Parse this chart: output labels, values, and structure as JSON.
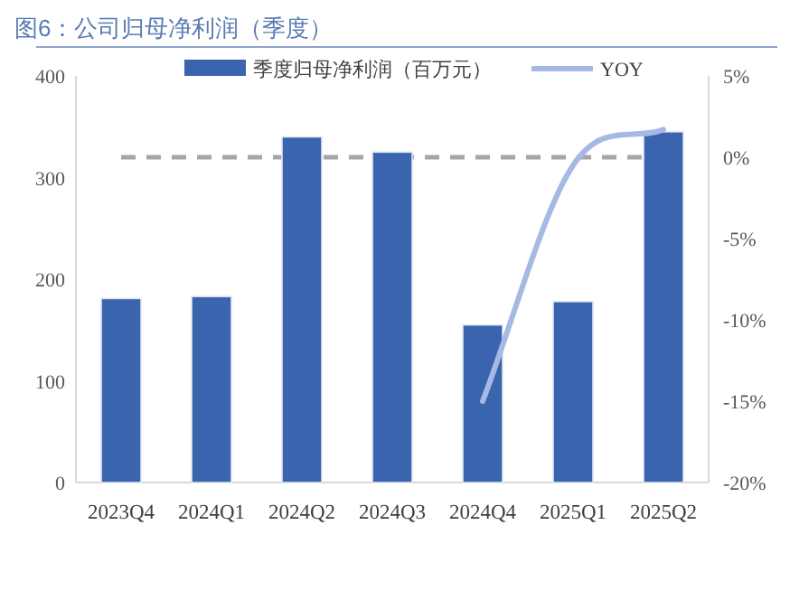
{
  "chart_data": {
    "type": "bar",
    "title": "图6：公司归母净利润（季度）",
    "categories": [
      "2023Q4",
      "2024Q1",
      "2024Q2",
      "2024Q3",
      "2024Q4",
      "2025Q1",
      "2025Q2"
    ],
    "series": [
      {
        "name": "季度归母净利润（百万元）",
        "color": "#3a64ad",
        "values": [
          181,
          183,
          340,
          325,
          155,
          178,
          345
        ]
      },
      {
        "name": "YOY",
        "type": "line",
        "axis": "y2",
        "color": "#a5b9e3",
        "values": [
          null,
          null,
          null,
          null,
          -15,
          -0.5,
          1.7
        ]
      }
    ],
    "ylim": [
      0,
      400
    ],
    "yticks": [
      0,
      100,
      200,
      300,
      400
    ],
    "y2lim": [
      -20,
      5
    ],
    "y2ticks": [
      {
        "value": -20,
        "label": "-20%"
      },
      {
        "value": -15,
        "label": "-15%"
      },
      {
        "value": -10,
        "label": "-10%"
      },
      {
        "value": -5,
        "label": "-5%"
      },
      {
        "value": 0,
        "label": "0%"
      },
      {
        "value": 5,
        "label": "5%"
      }
    ],
    "ref_lines": [
      {
        "axis": "y2",
        "value": 0,
        "color": "#a6a6a6",
        "line_style": "dashed"
      }
    ],
    "legend": "top",
    "grid": false
  }
}
